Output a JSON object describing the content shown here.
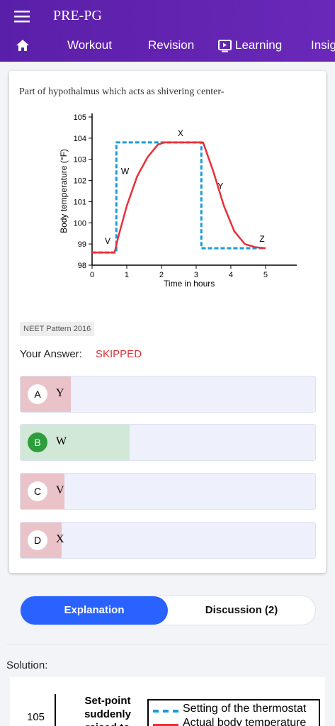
{
  "header": {
    "title": "PRE-PG",
    "tabs": [
      "Workout",
      "Revision",
      "Learning",
      "Insights"
    ]
  },
  "question": {
    "text": "Part of hypothalmus which acts as shivering center-",
    "figure": {
      "type": "line",
      "ylabel": "Body temperature (°F)",
      "xlabel": "Time in hours",
      "xlim": [
        0,
        5.9
      ],
      "ylim": [
        98,
        105
      ],
      "xticks": [
        0,
        1,
        2,
        3,
        4,
        5
      ],
      "yticks": [
        98,
        99,
        100,
        101,
        102,
        103,
        104,
        105
      ],
      "annotations": [
        "V",
        "W",
        "X",
        "Y",
        "Z"
      ],
      "series": [
        {
          "color": "#1b9bd8",
          "dashed": true,
          "x": [
            0,
            0.7,
            0.7,
            3.15,
            3.15,
            5
          ],
          "values": [
            98.6,
            98.6,
            103.8,
            103.8,
            98.8,
            98.8
          ]
        },
        {
          "color": "#e8303a",
          "dashed": false,
          "x": [
            0,
            0.65,
            0.75,
            1,
            1.3,
            1.6,
            1.9,
            2.1,
            3.2,
            3.5,
            3.8,
            4.1,
            4.4,
            4.7,
            5
          ],
          "values": [
            98.6,
            98.6,
            99.3,
            100.8,
            102.2,
            103.1,
            103.7,
            103.8,
            103.8,
            102.4,
            100.8,
            99.6,
            99.0,
            98.85,
            98.8
          ]
        }
      ]
    },
    "tag": "NEET Pattern 2016",
    "answer_label": "Your Answer:",
    "answer": "SKIPPED",
    "options": [
      {
        "letter": "A",
        "text": "Y",
        "percent": 17
      },
      {
        "letter": "B",
        "text": "W",
        "percent": 37
      },
      {
        "letter": "C",
        "text": "V",
        "percent": 15
      },
      {
        "letter": "D",
        "text": "X",
        "percent": 14
      }
    ]
  },
  "tabs": [
    "Explanation",
    "Discussion (2)"
  ],
  "solution": {
    "label": "Solution:",
    "tick": "105",
    "note": "Set-point suddenly raised to",
    "legend": [
      "Setting of the thermostat",
      "Actual body temperature"
    ]
  }
}
